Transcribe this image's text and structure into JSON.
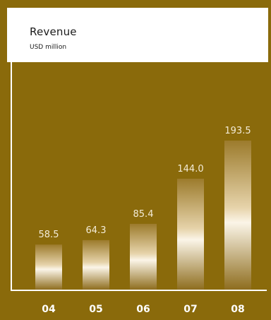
{
  "chart_data": {
    "type": "bar",
    "title": "Revenue",
    "subtitle": "USD million",
    "categories": [
      "04",
      "05",
      "06",
      "07",
      "08"
    ],
    "values": [
      58.5,
      64.3,
      85.4,
      144.0,
      193.5
    ],
    "value_labels": [
      "58.5",
      "64.3",
      "85.4",
      "144.0",
      "193.5"
    ],
    "xlabel": "",
    "ylabel": "",
    "ylim": [
      0,
      200
    ],
    "grid": false,
    "colors": {
      "background": "#8a6a0b",
      "bar_light": "#fbf5e8",
      "bar_dark": "#9c7b2c",
      "text": "#ffffff"
    }
  }
}
